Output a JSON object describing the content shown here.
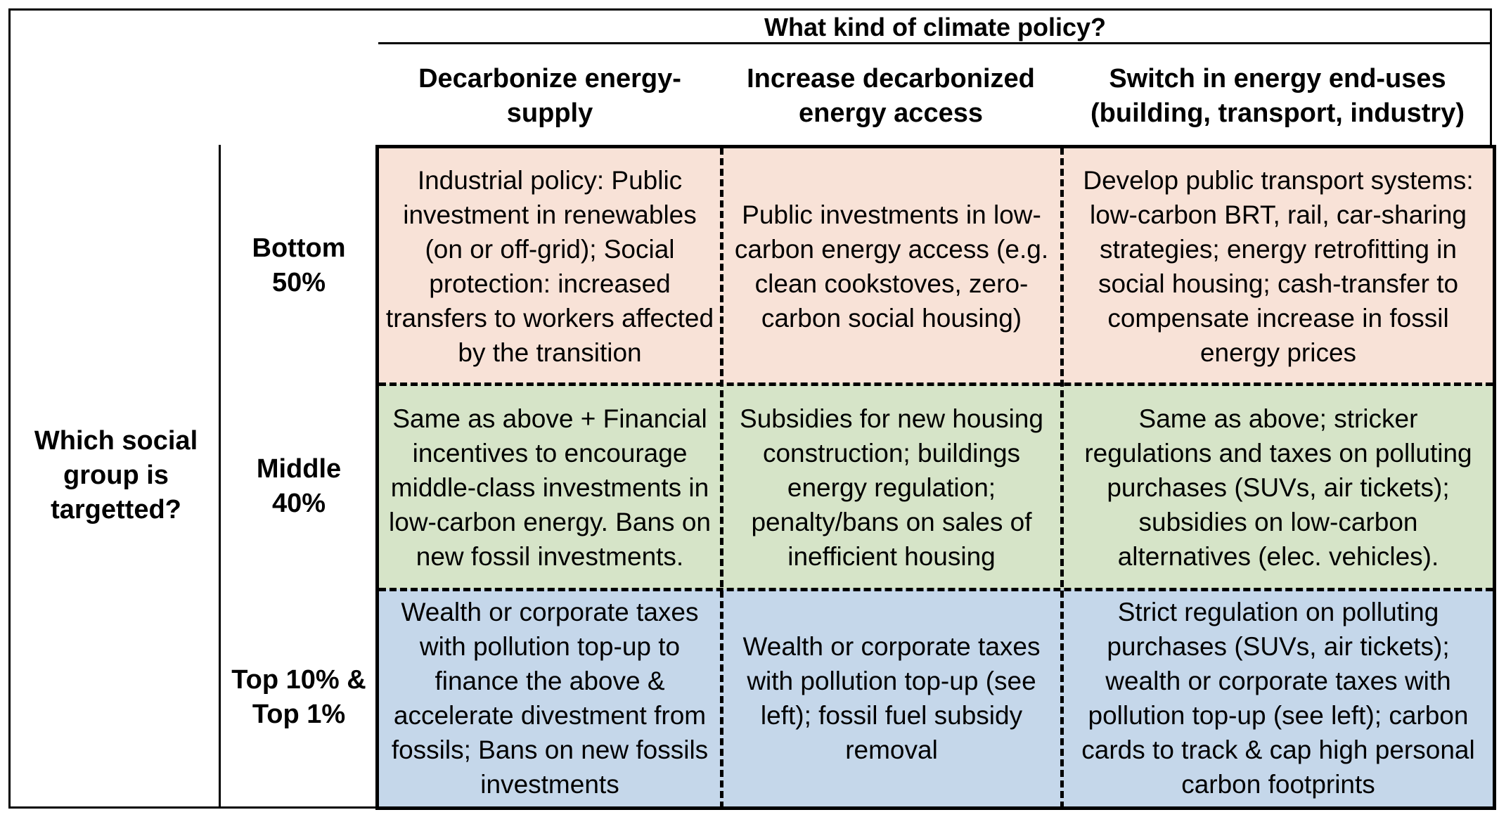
{
  "title": "What kind of climate policy?",
  "question": "Which social group is targetted?",
  "columns": [
    "Decarbonize energy-supply",
    "Increase decarbonized energy access",
    "Switch in energy end-uses (building, transport, industry)"
  ],
  "rows": [
    {
      "label": "Bottom 50%",
      "color": "#f8e2d7",
      "cells": [
        "Industrial policy: Public investment in renewables (on or off-grid); Social protection: increased transfers to workers affected by the transition",
        "Public investments in low-carbon energy access (e.g. clean cookstoves, zero-carbon social housing)",
        "Develop public transport systems: low-carbon BRT, rail, car-sharing strategies; energy retrofitting in social housing; cash-transfer to compensate increase in fossil energy prices"
      ]
    },
    {
      "label": "Middle 40%",
      "color": "#d6e4c8",
      "cells": [
        "Same as above + Financial incentives to encourage middle-class investments in low-carbon energy. Bans on new fossil investments.",
        "Subsidies for new housing construction; buildings energy regulation; penalty/bans on sales of inefficient housing",
        "Same as above; stricker regulations and taxes on polluting purchases (SUVs, air tickets); subsidies on low-carbon alternatives (elec. vehicles)."
      ]
    },
    {
      "label": "Top 10% & Top 1%",
      "color": "#c5d7ea",
      "cells": [
        "Wealth or corporate taxes with pollution top-up to finance the above & accelerate divestment from fossils; Bans on new fossils investments",
        "Wealth or corporate taxes with pollution top-up (see left); fossil fuel subsidy removal",
        "Strict regulation on polluting purchases (SUVs, air tickets); wealth or corporate taxes with pollution top-up (see left); carbon cards to track & cap high personal carbon footprints"
      ]
    }
  ]
}
